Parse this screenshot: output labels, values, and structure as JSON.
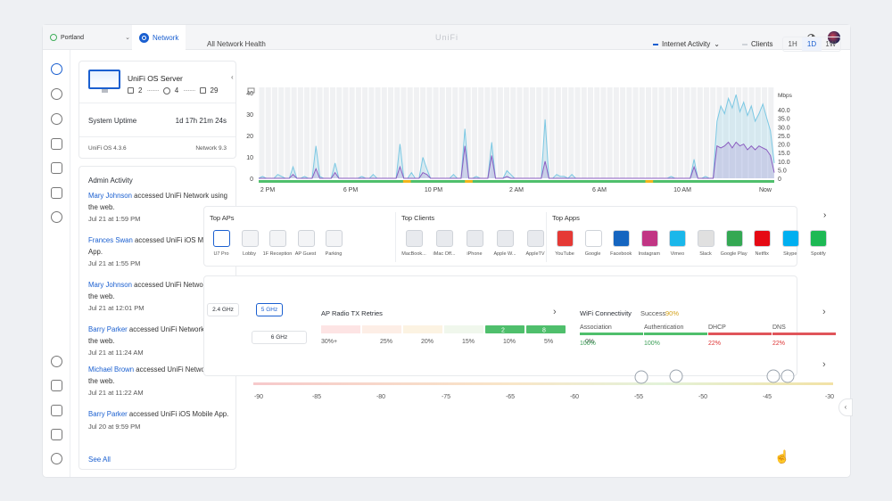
{
  "topbar": {
    "site": "Portland",
    "tab": "Network",
    "brand": "UniFi"
  },
  "os_card": {
    "name": "UniFi OS Server",
    "stat_a": "2",
    "stat_b": "4",
    "stat_c": "29",
    "uptime_label": "System Uptime",
    "uptime_value": "1d 17h 21m 24s",
    "os_version": "UniFi OS 4.3.6",
    "network_version": "Network 9.3"
  },
  "admin": {
    "title": "Admin Activity",
    "see_all": "See All",
    "items": [
      {
        "user": "Mary Johnson",
        "action": " accessed UniFi Network using the web.",
        "time": "Jul 21 at 1:59 PM"
      },
      {
        "user": "Frances Swan",
        "action": " accessed UniFi iOS Mobile App.",
        "time": "Jul 21 at 1:55 PM"
      },
      {
        "user": "Mary Johnson",
        "action": " accessed UniFi Network using the web.",
        "time": "Jul 21 at 12:01 PM"
      },
      {
        "user": "Barry Parker",
        "action": " accessed UniFi Network using the web.",
        "time": "Jul 21 at 11:24 AM"
      },
      {
        "user": "Michael Brown",
        "action": " accessed UniFi Network using the web.",
        "time": "Jul 21 at 11:22 AM"
      },
      {
        "user": "Barry Parker",
        "action": " accessed UniFi iOS Mobile App.",
        "time": "Jul 20 at 9:59 PM"
      }
    ]
  },
  "health": {
    "title": "All Network Health",
    "legend_a": "Internet Activity",
    "legend_b": "Clients",
    "ranges": [
      "1H",
      "1D",
      "1W"
    ],
    "active_range": "1D"
  },
  "chart_data": {
    "type": "area",
    "x_ticks": [
      "2 PM",
      "6 PM",
      "10 PM",
      "2 AM",
      "6 AM",
      "10 AM",
      "Now"
    ],
    "left_ticks": [
      "40",
      "30",
      "20",
      "10",
      "0"
    ],
    "right_unit": "Mbps",
    "right_ticks": [
      "40.0",
      "35.0",
      "30.0",
      "25.0",
      "20.0",
      "15.0",
      "10.0",
      "5.0",
      "0"
    ],
    "series": [
      {
        "values": [
          0,
          1,
          0,
          0,
          0,
          2,
          1,
          0,
          0,
          6,
          0,
          0,
          1,
          0,
          0,
          17,
          1,
          0,
          0,
          0,
          8,
          0,
          0,
          0,
          0,
          0,
          0,
          1,
          0,
          0,
          2,
          0,
          0,
          0,
          0,
          0,
          0,
          18,
          0,
          0,
          3,
          0,
          0,
          11,
          5,
          0,
          0,
          0,
          0,
          0,
          0,
          2,
          0,
          0,
          26,
          0,
          0,
          1,
          0,
          0,
          0,
          19,
          0,
          0,
          0,
          4,
          2,
          0,
          0,
          0,
          0,
          0,
          0,
          0,
          0,
          31,
          0,
          0,
          2,
          1,
          1,
          0,
          2,
          0,
          0,
          0,
          0,
          0,
          0,
          0,
          0,
          0,
          0,
          0,
          0,
          0,
          0,
          0,
          0,
          0,
          0,
          0,
          0,
          0,
          0,
          0,
          0,
          0,
          1,
          0,
          0,
          0,
          0,
          0,
          10,
          0,
          0,
          1,
          0,
          0,
          30,
          38,
          34,
          42,
          37,
          44,
          35,
          40,
          33,
          38,
          30,
          34,
          39,
          32,
          25,
          8
        ]
      },
      {
        "values": [
          0,
          0,
          0,
          0,
          0,
          0,
          0,
          0,
          0,
          2,
          0,
          0,
          0,
          0,
          0,
          5,
          0,
          0,
          0,
          0,
          3,
          0,
          0,
          0,
          0,
          0,
          0,
          0,
          0,
          0,
          0,
          0,
          0,
          0,
          0,
          0,
          0,
          6,
          0,
          0,
          0,
          0,
          0,
          3,
          2,
          0,
          0,
          0,
          0,
          0,
          0,
          0,
          0,
          0,
          17,
          0,
          0,
          0,
          0,
          0,
          0,
          12,
          0,
          0,
          0,
          1,
          0,
          0,
          0,
          0,
          0,
          0,
          0,
          0,
          0,
          9,
          0,
          0,
          0,
          0,
          0,
          0,
          0,
          0,
          0,
          0,
          0,
          0,
          0,
          0,
          0,
          0,
          0,
          0,
          0,
          0,
          0,
          0,
          0,
          0,
          0,
          0,
          0,
          0,
          0,
          0,
          0,
          0,
          0,
          0,
          0,
          0,
          0,
          0,
          6,
          0,
          0,
          0,
          0,
          0,
          17,
          16,
          17,
          19,
          16,
          19,
          17,
          18,
          15,
          17,
          15,
          17,
          16,
          15,
          12,
          3
        ]
      }
    ],
    "status": [
      "#4fbf6c",
      "#f2b51c"
    ]
  },
  "top": {
    "aps_title": "Top APs",
    "aps": [
      "U7 Pro",
      "Lobby",
      "1F Reception",
      "AP Guest",
      "Parking"
    ],
    "clients_title": "Top Clients",
    "clients": [
      "MacBook...",
      "iMac Off...",
      "iPhone",
      "Apple W...",
      "AppleTV"
    ],
    "apps_title": "Top Apps",
    "apps": [
      "YouTube",
      "Google",
      "Facebook",
      "Instagram",
      "Vimeo",
      "Slack",
      "Google Play",
      "Netflix",
      "Skype",
      "Spotify"
    ]
  },
  "radio": {
    "bands": [
      "2.4 GHz",
      "5 GHz",
      "6 GHz"
    ],
    "active_band": "5 GHz",
    "title": "AP Radio TX Retries",
    "buckets": [
      "30%+",
      "25%",
      "20%",
      "15%",
      "10%",
      "5%",
      "0%"
    ],
    "counts": [
      "2",
      "8"
    ],
    "wifi_title": "WiFi Connectivity",
    "success_label": "Success",
    "success_value": "90%",
    "metrics": [
      {
        "label": "Association",
        "value": "100%"
      },
      {
        "label": "Authentication",
        "value": "100%"
      },
      {
        "label": "DHCP",
        "value": "22%"
      },
      {
        "label": "DNS",
        "value": "22%"
      }
    ],
    "rssi_ticks": [
      "-90",
      "-85",
      "-80",
      "-75",
      "-65",
      "-60",
      "-55",
      "-50",
      "-45",
      "-30"
    ]
  },
  "colors": {
    "accent": "#1a5fd0",
    "good": "#4fbf6c",
    "bad": "#e0555a",
    "chart_a": "#7cc8e3",
    "chart_b": "#8a5cc0"
  }
}
